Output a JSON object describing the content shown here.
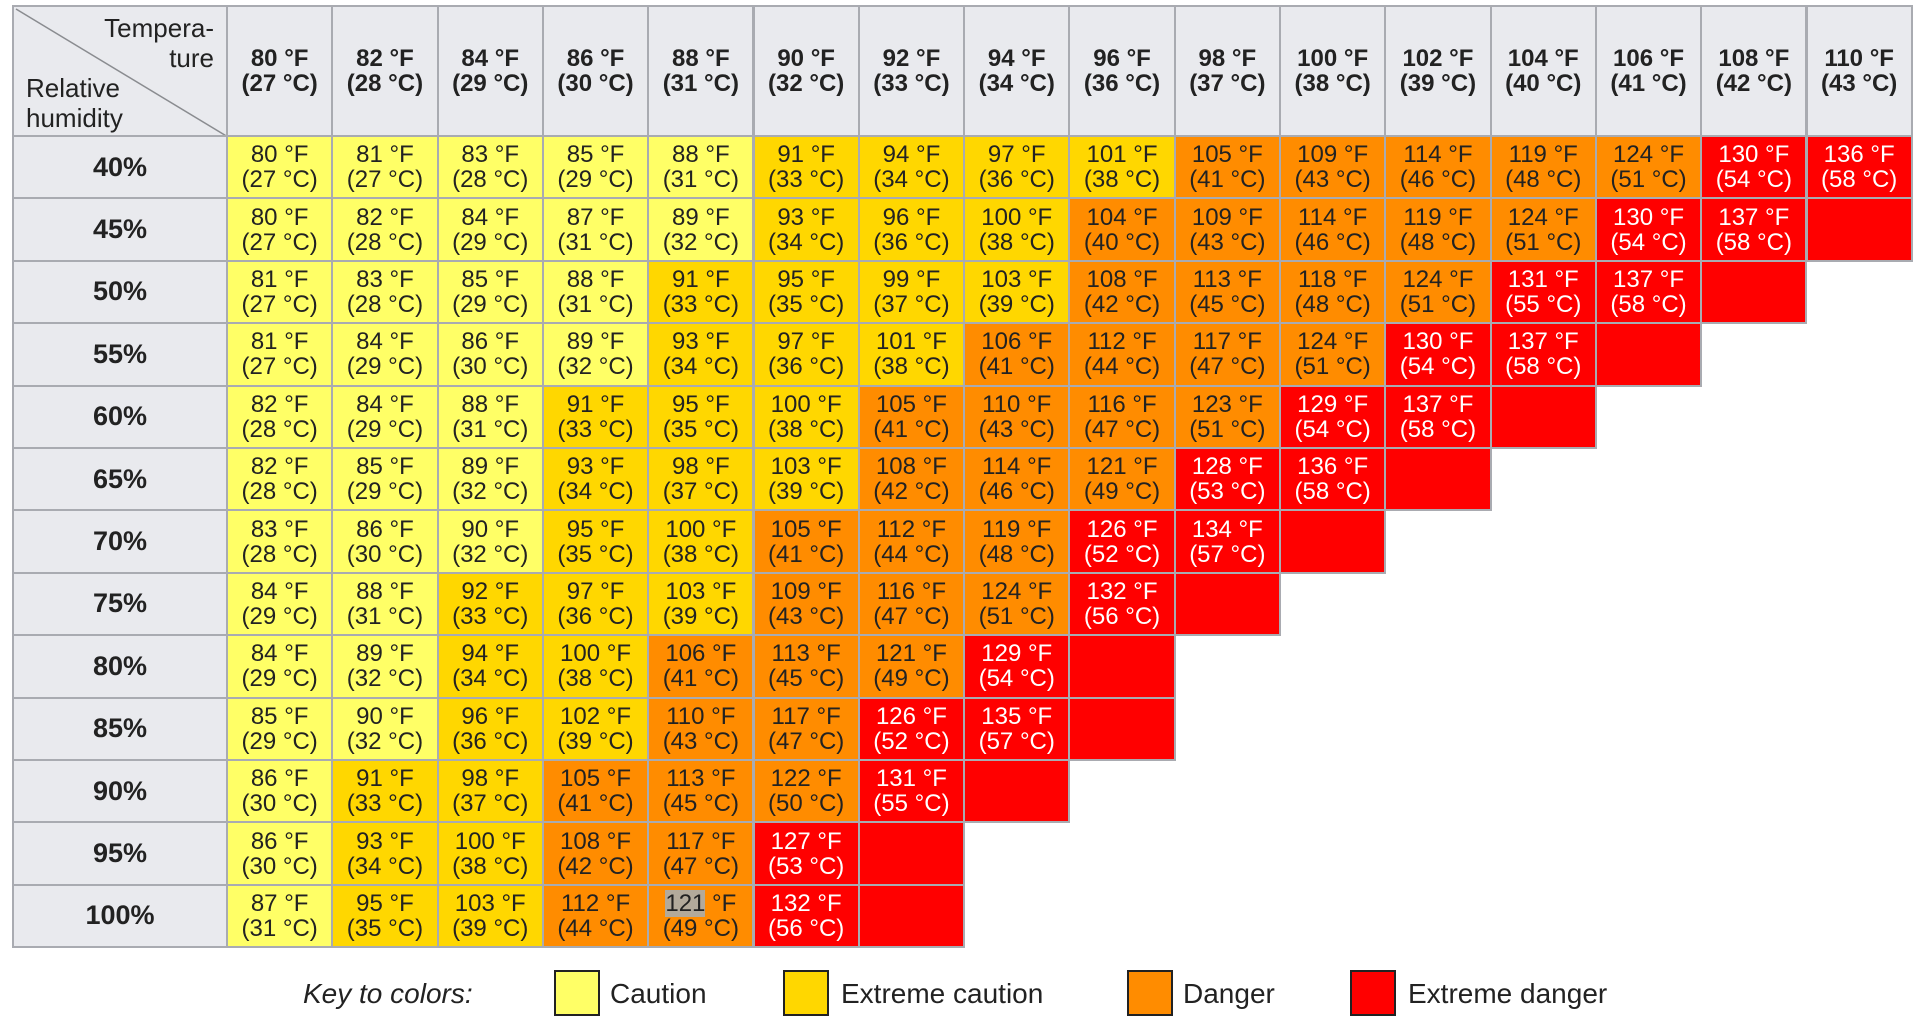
{
  "corner": {
    "temperature_lines": [
      "Tempera-",
      "ture"
    ],
    "humidity_lines": [
      "Relative",
      "humidity"
    ]
  },
  "columns": [
    {
      "f": "80 °F",
      "c": "(27 °C)"
    },
    {
      "f": "82 °F",
      "c": "(28 °C)"
    },
    {
      "f": "84 °F",
      "c": "(29 °C)"
    },
    {
      "f": "86 °F",
      "c": "(30 °C)"
    },
    {
      "f": "88 °F",
      "c": "(31 °C)"
    },
    {
      "f": "90 °F",
      "c": "(32 °C)"
    },
    {
      "f": "92 °F",
      "c": "(33 °C)"
    },
    {
      "f": "94 °F",
      "c": "(34 °C)"
    },
    {
      "f": "96 °F",
      "c": "(36 °C)"
    },
    {
      "f": "98 °F",
      "c": "(37 °C)"
    },
    {
      "f": "100 °F",
      "c": "(38 °C)"
    },
    {
      "f": "102 °F",
      "c": "(39 °C)"
    },
    {
      "f": "104 °F",
      "c": "(40 °C)"
    },
    {
      "f": "106 °F",
      "c": "(41 °C)"
    },
    {
      "f": "108 °F",
      "c": "(42 °C)"
    },
    {
      "f": "110 °F",
      "c": "(43 °C)"
    }
  ],
  "colors": {
    "c": "#ffff66",
    "ec": "#ffd700",
    "d": "#ff8c00",
    "ed": "#ff0000"
  },
  "chart_data": {
    "type": "table",
    "row_header": "Relative humidity",
    "column_header": "Temperature",
    "rows": [
      {
        "label": "40%",
        "cells": [
          [
            80,
            27,
            "c"
          ],
          [
            81,
            27,
            "c"
          ],
          [
            83,
            28,
            "c"
          ],
          [
            85,
            29,
            "c"
          ],
          [
            88,
            31,
            "c"
          ],
          [
            91,
            33,
            "ec"
          ],
          [
            94,
            34,
            "ec"
          ],
          [
            97,
            36,
            "ec"
          ],
          [
            101,
            38,
            "ec"
          ],
          [
            105,
            41,
            "d"
          ],
          [
            109,
            43,
            "d"
          ],
          [
            114,
            46,
            "d"
          ],
          [
            119,
            48,
            "d"
          ],
          [
            124,
            51,
            "d"
          ],
          [
            130,
            54,
            "ed"
          ],
          [
            136,
            58,
            "ed"
          ]
        ]
      },
      {
        "label": "45%",
        "cells": [
          [
            80,
            27,
            "c"
          ],
          [
            82,
            28,
            "c"
          ],
          [
            84,
            29,
            "c"
          ],
          [
            87,
            31,
            "c"
          ],
          [
            89,
            32,
            "c"
          ],
          [
            93,
            34,
            "ec"
          ],
          [
            96,
            36,
            "ec"
          ],
          [
            100,
            38,
            "ec"
          ],
          [
            104,
            40,
            "d"
          ],
          [
            109,
            43,
            "d"
          ],
          [
            114,
            46,
            "d"
          ],
          [
            119,
            48,
            "d"
          ],
          [
            124,
            51,
            "d"
          ],
          [
            130,
            54,
            "ed"
          ],
          [
            137,
            58,
            "ed"
          ],
          [
            null,
            null,
            "ed"
          ]
        ]
      },
      {
        "label": "50%",
        "cells": [
          [
            81,
            27,
            "c"
          ],
          [
            83,
            28,
            "c"
          ],
          [
            85,
            29,
            "c"
          ],
          [
            88,
            31,
            "c"
          ],
          [
            91,
            33,
            "ec"
          ],
          [
            95,
            35,
            "ec"
          ],
          [
            99,
            37,
            "ec"
          ],
          [
            103,
            39,
            "ec"
          ],
          [
            108,
            42,
            "d"
          ],
          [
            113,
            45,
            "d"
          ],
          [
            118,
            48,
            "d"
          ],
          [
            124,
            51,
            "d"
          ],
          [
            131,
            55,
            "ed"
          ],
          [
            137,
            58,
            "ed"
          ],
          [
            null,
            null,
            "ed"
          ]
        ]
      },
      {
        "label": "55%",
        "cells": [
          [
            81,
            27,
            "c"
          ],
          [
            84,
            29,
            "c"
          ],
          [
            86,
            30,
            "c"
          ],
          [
            89,
            32,
            "c"
          ],
          [
            93,
            34,
            "ec"
          ],
          [
            97,
            36,
            "ec"
          ],
          [
            101,
            38,
            "ec"
          ],
          [
            106,
            41,
            "d"
          ],
          [
            112,
            44,
            "d"
          ],
          [
            117,
            47,
            "d"
          ],
          [
            124,
            51,
            "d"
          ],
          [
            130,
            54,
            "ed"
          ],
          [
            137,
            58,
            "ed"
          ],
          [
            null,
            null,
            "ed"
          ]
        ]
      },
      {
        "label": "60%",
        "cells": [
          [
            82,
            28,
            "c"
          ],
          [
            84,
            29,
            "c"
          ],
          [
            88,
            31,
            "c"
          ],
          [
            91,
            33,
            "ec"
          ],
          [
            95,
            35,
            "ec"
          ],
          [
            100,
            38,
            "ec"
          ],
          [
            105,
            41,
            "d"
          ],
          [
            110,
            43,
            "d"
          ],
          [
            116,
            47,
            "d"
          ],
          [
            123,
            51,
            "d"
          ],
          [
            129,
            54,
            "ed"
          ],
          [
            137,
            58,
            "ed"
          ],
          [
            null,
            null,
            "ed"
          ]
        ]
      },
      {
        "label": "65%",
        "cells": [
          [
            82,
            28,
            "c"
          ],
          [
            85,
            29,
            "c"
          ],
          [
            89,
            32,
            "c"
          ],
          [
            93,
            34,
            "ec"
          ],
          [
            98,
            37,
            "ec"
          ],
          [
            103,
            39,
            "ec"
          ],
          [
            108,
            42,
            "d"
          ],
          [
            114,
            46,
            "d"
          ],
          [
            121,
            49,
            "d"
          ],
          [
            128,
            53,
            "ed"
          ],
          [
            136,
            58,
            "ed"
          ],
          [
            null,
            null,
            "ed"
          ]
        ]
      },
      {
        "label": "70%",
        "cells": [
          [
            83,
            28,
            "c"
          ],
          [
            86,
            30,
            "c"
          ],
          [
            90,
            32,
            "c"
          ],
          [
            95,
            35,
            "ec"
          ],
          [
            100,
            38,
            "ec"
          ],
          [
            105,
            41,
            "d"
          ],
          [
            112,
            44,
            "d"
          ],
          [
            119,
            48,
            "d"
          ],
          [
            126,
            52,
            "ed"
          ],
          [
            134,
            57,
            "ed"
          ],
          [
            null,
            null,
            "ed"
          ]
        ]
      },
      {
        "label": "75%",
        "cells": [
          [
            84,
            29,
            "c"
          ],
          [
            88,
            31,
            "c"
          ],
          [
            92,
            33,
            "ec"
          ],
          [
            97,
            36,
            "ec"
          ],
          [
            103,
            39,
            "ec"
          ],
          [
            109,
            43,
            "d"
          ],
          [
            116,
            47,
            "d"
          ],
          [
            124,
            51,
            "d"
          ],
          [
            132,
            56,
            "ed"
          ],
          [
            null,
            null,
            "ed"
          ]
        ]
      },
      {
        "label": "80%",
        "cells": [
          [
            84,
            29,
            "c"
          ],
          [
            89,
            32,
            "c"
          ],
          [
            94,
            34,
            "ec"
          ],
          [
            100,
            38,
            "ec"
          ],
          [
            106,
            41,
            "d"
          ],
          [
            113,
            45,
            "d"
          ],
          [
            121,
            49,
            "d"
          ],
          [
            129,
            54,
            "ed"
          ],
          [
            null,
            null,
            "ed"
          ]
        ]
      },
      {
        "label": "85%",
        "cells": [
          [
            85,
            29,
            "c"
          ],
          [
            90,
            32,
            "c"
          ],
          [
            96,
            36,
            "ec"
          ],
          [
            102,
            39,
            "ec"
          ],
          [
            110,
            43,
            "d"
          ],
          [
            117,
            47,
            "d"
          ],
          [
            126,
            52,
            "ed"
          ],
          [
            135,
            57,
            "ed"
          ],
          [
            null,
            null,
            "ed"
          ]
        ]
      },
      {
        "label": "90%",
        "cells": [
          [
            86,
            30,
            "c"
          ],
          [
            91,
            33,
            "ec"
          ],
          [
            98,
            37,
            "ec"
          ],
          [
            105,
            41,
            "d"
          ],
          [
            113,
            45,
            "d"
          ],
          [
            122,
            50,
            "d"
          ],
          [
            131,
            55,
            "ed"
          ],
          [
            null,
            null,
            "ed"
          ]
        ]
      },
      {
        "label": "95%",
        "cells": [
          [
            86,
            30,
            "c"
          ],
          [
            93,
            34,
            "ec"
          ],
          [
            100,
            38,
            "ec"
          ],
          [
            108,
            42,
            "d"
          ],
          [
            117,
            47,
            "d"
          ],
          [
            127,
            53,
            "ed"
          ],
          [
            null,
            null,
            "ed"
          ]
        ]
      },
      {
        "label": "100%",
        "cells": [
          [
            87,
            31,
            "c"
          ],
          [
            95,
            35,
            "ec"
          ],
          [
            103,
            39,
            "ec"
          ],
          [
            112,
            44,
            "d"
          ],
          [
            121,
            49,
            "d"
          ],
          [
            132,
            56,
            "ed"
          ],
          [
            null,
            null,
            "ed"
          ]
        ]
      }
    ],
    "highlighted_text": {
      "row": 12,
      "col": 4,
      "text": "121"
    }
  },
  "legend": {
    "key_label": "Key to colors:",
    "items": [
      {
        "label": "Caution",
        "cat": "c"
      },
      {
        "label": "Extreme caution",
        "cat": "ec"
      },
      {
        "label": "Danger",
        "cat": "d"
      },
      {
        "label": "Extreme danger",
        "cat": "ed"
      }
    ]
  }
}
